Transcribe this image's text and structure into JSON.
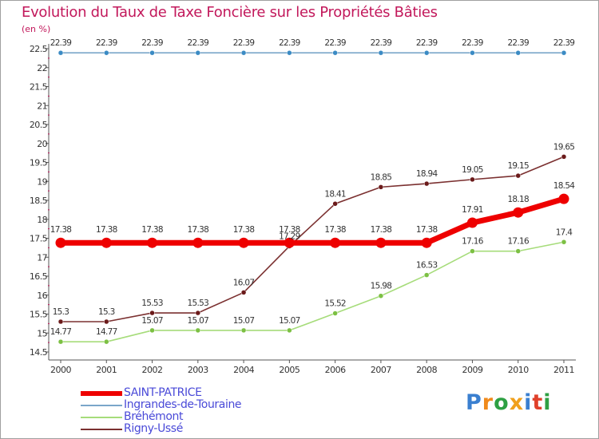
{
  "colors": {
    "title": "#c2185b",
    "legend_text": "#4a4ad8",
    "axis": "#555555",
    "grid": "#e5e5e5"
  },
  "chart_data": {
    "type": "line",
    "title": "Evolution du Taux de Taxe Foncière sur les Propriétés Bâties",
    "ylabel": "(en %)",
    "xlabel": "",
    "ylim": [
      14.5,
      22.5
    ],
    "ytick_labels": [
      "14.5",
      "15",
      "15.5",
      "16",
      "16.5",
      "17",
      "17.5",
      "18",
      "18.5",
      "19",
      "19.5",
      "20",
      "20.5",
      "21",
      "21.5",
      "22",
      "22.5"
    ],
    "x": [
      "2000",
      "2001",
      "2002",
      "2003",
      "2004",
      "2005",
      "2006",
      "2007",
      "2008",
      "2009",
      "2010",
      "2011"
    ],
    "series": [
      {
        "name": "Ingrandes-de-Touraine",
        "color": "#7aa6c9",
        "marker": "#3b8bc4",
        "emphasis": "thin",
        "values": [
          22.39,
          22.39,
          22.39,
          22.39,
          22.39,
          22.39,
          22.39,
          22.39,
          22.39,
          22.39,
          22.39,
          22.39
        ],
        "labels": [
          "22.39",
          "22.39",
          "22.39",
          "22.39",
          "22.39",
          "22.39",
          "22.39",
          "22.39",
          "22.39",
          "22.39",
          "22.39",
          "22.39"
        ]
      },
      {
        "name": "Rigny-Ussé",
        "color": "#7b3030",
        "marker": "#6b1a1a",
        "emphasis": "thin",
        "values": [
          15.3,
          15.3,
          15.53,
          15.53,
          16.07,
          17.29,
          18.41,
          18.85,
          18.94,
          19.05,
          19.15,
          19.65
        ],
        "labels": [
          "15.3",
          "15.3",
          "15.53",
          "15.53",
          "16.07",
          "17.29",
          "18.41",
          "18.85",
          "18.94",
          "19.05",
          "19.15",
          "19.65"
        ]
      },
      {
        "name": "Bréhémont",
        "color": "#a6dc7a",
        "marker": "#7cc043",
        "emphasis": "thin",
        "values": [
          14.77,
          14.77,
          15.07,
          15.07,
          15.07,
          15.07,
          15.52,
          15.98,
          16.53,
          17.16,
          17.16,
          17.4
        ],
        "labels": [
          "14.77",
          "14.77",
          "15.07",
          "15.07",
          "15.07",
          "15.07",
          "15.52",
          "15.98",
          "16.53",
          "17.16",
          "17.16",
          "17.4"
        ]
      },
      {
        "name": "SAINT-PATRICE",
        "color": "#ee0000",
        "marker": "#ee0000",
        "emphasis": "thick",
        "values": [
          17.38,
          17.38,
          17.38,
          17.38,
          17.38,
          17.38,
          17.38,
          17.38,
          17.38,
          17.91,
          18.18,
          18.54
        ],
        "labels": [
          "17.38",
          "17.38",
          "17.38",
          "17.38",
          "17.38",
          "17.38",
          "17.38",
          "17.38",
          "17.38",
          "17.91",
          "18.18",
          "18.54"
        ]
      }
    ],
    "legend": [
      "SAINT-PATRICE",
      "Ingrandes-de-Touraine",
      "Bréhémont",
      "Rigny-Ussé"
    ],
    "legend_position": "bottom-left",
    "grid": false
  },
  "legend_items": [
    {
      "label": "SAINT-PATRICE",
      "color": "#ee0000",
      "thickness": "thick"
    },
    {
      "label": "Ingrandes-de-Touraine",
      "color": "#7aa6c9",
      "thickness": "thin"
    },
    {
      "label": "Bréhémont",
      "color": "#a6dc7a",
      "thickness": "thin"
    },
    {
      "label": "Rigny-Ussé",
      "color": "#7b3030",
      "thickness": "thin"
    }
  ],
  "brand": {
    "letters": [
      "P",
      "r",
      "o",
      "x",
      "i",
      "t",
      "i"
    ],
    "colors": [
      "#3a7fd0",
      "#f08a1c",
      "#2ea043",
      "#f0a01c",
      "#3a7fd0",
      "#e0402a",
      "#2ea043"
    ]
  }
}
